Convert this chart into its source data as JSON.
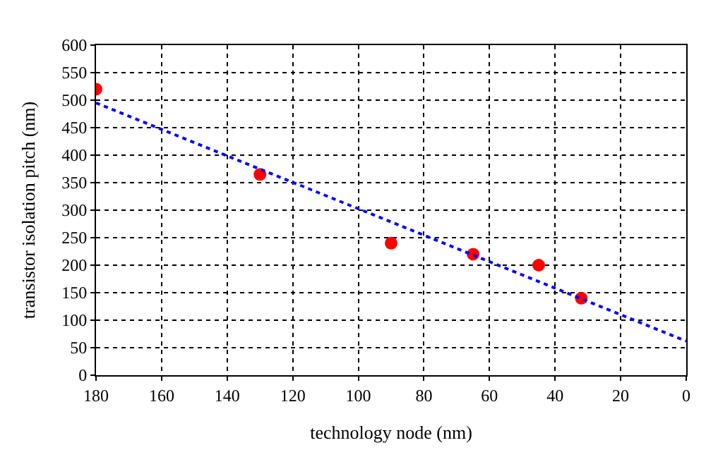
{
  "chart_data": {
    "type": "scatter",
    "xlabel": "technology node (nm)",
    "ylabel": "transistor isolation pitch (nm)",
    "series": [
      {
        "color": "#ff0000",
        "marker": "circle",
        "x": [
          180,
          130,
          90,
          65,
          45,
          32
        ],
        "values": [
          520,
          365,
          240,
          220,
          200,
          140
        ]
      },
      {
        "type": "line",
        "color": "#0000ff",
        "line_style": "dotted",
        "marker": "none",
        "x": [
          180,
          0
        ],
        "values": [
          495,
          62
        ]
      }
    ],
    "xlim": [
      180,
      0
    ],
    "xticks": [
      180,
      160,
      140,
      120,
      100,
      80,
      60,
      40,
      20,
      0
    ],
    "ylim": [
      0,
      600
    ],
    "yticks": [
      0,
      50,
      100,
      150,
      200,
      250,
      300,
      350,
      400,
      450,
      500,
      550,
      600
    ],
    "grid": true,
    "legend": false
  }
}
